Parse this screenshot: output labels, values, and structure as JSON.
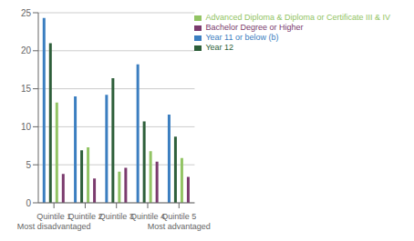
{
  "chart_data": {
    "type": "bar",
    "categories": [
      "Quintile 1\nMost disadvantaged",
      "Quintile 2",
      "Quintile 3",
      "Quintile 4",
      "Quintile 5\nMost advantaged"
    ],
    "series": [
      {
        "name": "Year 11 or below (b)",
        "color": "#3B7EC0",
        "values": [
          24.3,
          14.0,
          14.2,
          18.2,
          11.6
        ]
      },
      {
        "name": "Year 12",
        "color": "#2E5F3A",
        "values": [
          21.0,
          6.9,
          16.4,
          10.7,
          8.7
        ]
      },
      {
        "name": "Advanced Diploma & Diploma or Certificate III & IV",
        "color": "#92C464",
        "values": [
          13.2,
          7.3,
          4.1,
          6.8,
          5.9
        ]
      },
      {
        "name": "Bachelor Degree or Higher",
        "color": "#7B3B6E",
        "values": [
          3.8,
          3.2,
          4.6,
          5.4,
          3.4
        ]
      }
    ],
    "ylabel": "%",
    "ylim": [
      0,
      25
    ],
    "yticks": [
      0,
      5,
      10,
      15,
      20,
      25
    ],
    "grid": true,
    "legend": "upper right"
  }
}
